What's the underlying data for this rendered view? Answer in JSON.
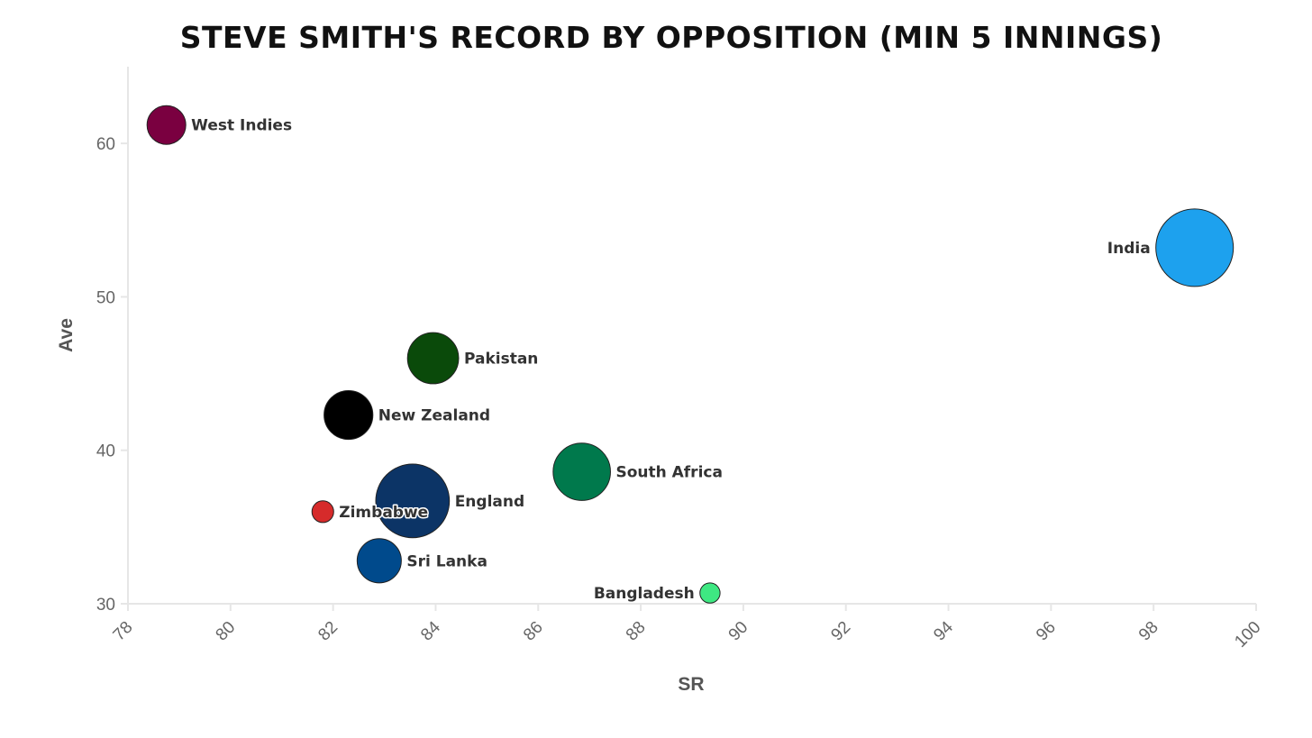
{
  "chart_data": {
    "type": "scatter",
    "title": "Steve Smith's record by opposition (min 5 innings)",
    "xlabel": "SR",
    "ylabel": "Ave",
    "xlim": [
      78,
      100
    ],
    "ylim": [
      30,
      65
    ],
    "x_ticks": [
      78,
      80,
      82,
      84,
      86,
      88,
      90,
      92,
      94,
      96,
      98,
      100
    ],
    "y_ticks": [
      30,
      40,
      50,
      60
    ],
    "grid": false,
    "points": [
      {
        "name": "West Indies",
        "x": 78.75,
        "y": 61.2,
        "color": "#7a0040",
        "size": 0.5,
        "label_side": "right"
      },
      {
        "name": "India",
        "x": 98.8,
        "y": 53.2,
        "color": "#1da1ee",
        "size": 1.0,
        "label_side": "left"
      },
      {
        "name": "Pakistan",
        "x": 83.95,
        "y": 46.0,
        "color": "#0a4a0a",
        "size": 0.66,
        "label_side": "right"
      },
      {
        "name": "New Zealand",
        "x": 82.3,
        "y": 42.3,
        "color": "#000000",
        "size": 0.63,
        "label_side": "right"
      },
      {
        "name": "South Africa",
        "x": 86.85,
        "y": 38.6,
        "color": "#00794c",
        "size": 0.74,
        "label_side": "right"
      },
      {
        "name": "England",
        "x": 83.55,
        "y": 36.7,
        "color": "#0c3466",
        "size": 0.95,
        "label_side": "right"
      },
      {
        "name": "Zimbabwe",
        "x": 81.8,
        "y": 36.0,
        "color": "#d62b2b",
        "size": 0.28,
        "label_side": "right"
      },
      {
        "name": "Sri Lanka",
        "x": 82.9,
        "y": 32.8,
        "color": "#004a8c",
        "size": 0.57,
        "label_side": "right"
      },
      {
        "name": "Bangladesh",
        "x": 89.35,
        "y": 30.7,
        "color": "#3ee882",
        "size": 0.26,
        "label_side": "left"
      }
    ]
  }
}
